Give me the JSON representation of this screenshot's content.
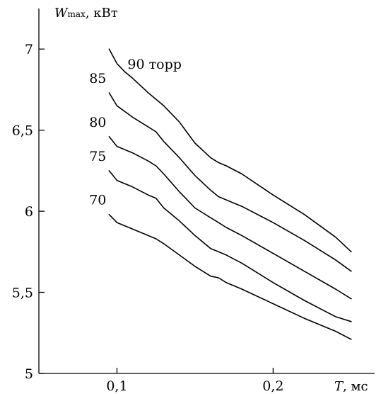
{
  "chart_data": {
    "type": "line",
    "title": "",
    "xlabel": {
      "symbol": "T",
      "unit": ", мс"
    },
    "ylabel": {
      "symbol": "W",
      "subscript": "max",
      "unit": ", кВт"
    },
    "xlim": [
      0.05,
      0.265
    ],
    "ylim": [
      5.0,
      7.25
    ],
    "x_ticks": [
      {
        "value": 0.1,
        "label": "0,1"
      },
      {
        "value": 0.2,
        "label": "0,2"
      }
    ],
    "y_ticks": [
      {
        "value": 5.0,
        "label": "5"
      },
      {
        "value": 5.5,
        "label": "5,5"
      },
      {
        "value": 6.0,
        "label": "6"
      },
      {
        "value": 6.5,
        "label": "6,5"
      },
      {
        "value": 7.0,
        "label": "7"
      }
    ],
    "grid": false,
    "legend": "inline labels at left end of each curve",
    "series": [
      {
        "name": "90 торр",
        "x": [
          0.095,
          0.1,
          0.105,
          0.11,
          0.12,
          0.13,
          0.14,
          0.15,
          0.16,
          0.165,
          0.17,
          0.18,
          0.2,
          0.22,
          0.24,
          0.25
        ],
        "y": [
          7.0,
          6.91,
          6.86,
          6.82,
          6.73,
          6.65,
          6.55,
          6.42,
          6.33,
          6.3,
          6.28,
          6.23,
          6.1,
          5.98,
          5.84,
          5.75
        ]
      },
      {
        "name": "85",
        "x": [
          0.095,
          0.1,
          0.11,
          0.12,
          0.125,
          0.13,
          0.14,
          0.15,
          0.16,
          0.165,
          0.17,
          0.18,
          0.2,
          0.22,
          0.24,
          0.25
        ],
        "y": [
          6.73,
          6.65,
          6.58,
          6.52,
          6.49,
          6.43,
          6.33,
          6.22,
          6.13,
          6.09,
          6.07,
          6.03,
          5.93,
          5.82,
          5.7,
          5.63
        ]
      },
      {
        "name": "80",
        "x": [
          0.095,
          0.1,
          0.11,
          0.12,
          0.125,
          0.13,
          0.14,
          0.15,
          0.16,
          0.165,
          0.17,
          0.18,
          0.2,
          0.22,
          0.24,
          0.25
        ],
        "y": [
          6.46,
          6.4,
          6.36,
          6.31,
          6.28,
          6.23,
          6.12,
          6.02,
          5.96,
          5.93,
          5.9,
          5.85,
          5.74,
          5.63,
          5.52,
          5.46
        ]
      },
      {
        "name": "75",
        "x": [
          0.095,
          0.1,
          0.11,
          0.12,
          0.125,
          0.13,
          0.14,
          0.15,
          0.16,
          0.165,
          0.17,
          0.18,
          0.2,
          0.22,
          0.24,
          0.25
        ],
        "y": [
          6.25,
          6.19,
          6.15,
          6.1,
          6.08,
          6.02,
          5.94,
          5.85,
          5.77,
          5.75,
          5.73,
          5.68,
          5.56,
          5.45,
          5.35,
          5.32
        ]
      },
      {
        "name": "70",
        "x": [
          0.095,
          0.1,
          0.11,
          0.12,
          0.125,
          0.13,
          0.14,
          0.15,
          0.16,
          0.165,
          0.17,
          0.18,
          0.2,
          0.22,
          0.24,
          0.25
        ],
        "y": [
          5.98,
          5.93,
          5.89,
          5.85,
          5.83,
          5.8,
          5.73,
          5.66,
          5.6,
          5.59,
          5.56,
          5.52,
          5.43,
          5.34,
          5.26,
          5.21
        ]
      }
    ]
  }
}
